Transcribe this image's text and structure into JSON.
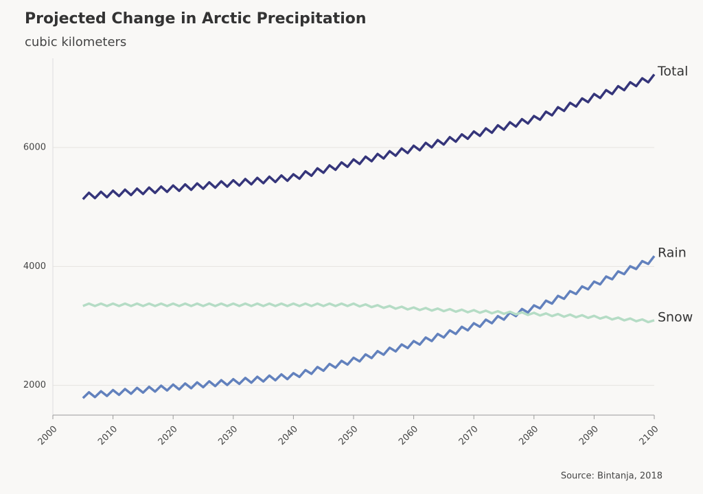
{
  "chart_data": {
    "type": "line",
    "title": "Projected Change in Arctic Precipitation",
    "subtitle": "cubic kilometers",
    "source": "Source: Bintanja, 2018",
    "x": [
      2005,
      2006,
      2007,
      2008,
      2009,
      2010,
      2011,
      2012,
      2013,
      2014,
      2015,
      2016,
      2017,
      2018,
      2019,
      2020,
      2021,
      2022,
      2023,
      2024,
      2025,
      2026,
      2027,
      2028,
      2029,
      2030,
      2031,
      2032,
      2033,
      2034,
      2035,
      2036,
      2037,
      2038,
      2039,
      2040,
      2041,
      2042,
      2043,
      2044,
      2045,
      2046,
      2047,
      2048,
      2049,
      2050,
      2051,
      2052,
      2053,
      2054,
      2055,
      2056,
      2057,
      2058,
      2059,
      2060,
      2061,
      2062,
      2063,
      2064,
      2065,
      2066,
      2067,
      2068,
      2069,
      2070,
      2071,
      2072,
      2073,
      2074,
      2075,
      2076,
      2077,
      2078,
      2079,
      2080,
      2081,
      2082,
      2083,
      2084,
      2085,
      2086,
      2087,
      2088,
      2089,
      2090,
      2091,
      2092,
      2093,
      2094,
      2095,
      2096,
      2097,
      2098,
      2099,
      2100
    ],
    "series": [
      {
        "name": "Total",
        "color": "#35357a",
        "values": [
          5130,
          5239,
          5148,
          5256,
          5165,
          5274,
          5183,
          5292,
          5200,
          5309,
          5218,
          5327,
          5236,
          5344,
          5253,
          5362,
          5271,
          5380,
          5288,
          5397,
          5306,
          5415,
          5324,
          5432,
          5341,
          5450,
          5360,
          5470,
          5380,
          5490,
          5400,
          5510,
          5420,
          5530,
          5440,
          5550,
          5475,
          5600,
          5525,
          5650,
          5575,
          5700,
          5625,
          5750,
          5675,
          5800,
          5723,
          5846,
          5769,
          5892,
          5815,
          5938,
          5861,
          5984,
          5907,
          6030,
          5954,
          6078,
          6002,
          6126,
          6050,
          6174,
          6098,
          6222,
          6146,
          6270,
          6196,
          6322,
          6248,
          6374,
          6300,
          6426,
          6352,
          6478,
          6404,
          6530,
          6467,
          6604,
          6541,
          6678,
          6615,
          6752,
          6689,
          6826,
          6763,
          6900,
          6833,
          6966,
          6899,
          7032,
          6965,
          7098,
          7031,
          7164,
          7097,
          7230
        ]
      },
      {
        "name": "Rain",
        "color": "#6281bd",
        "values": [
          1785,
          1884,
          1803,
          1902,
          1822,
          1921,
          1840,
          1939,
          1859,
          1958,
          1877,
          1976,
          1896,
          1995,
          1914,
          2013,
          1932,
          2032,
          1951,
          2050,
          1969,
          2068,
          1988,
          2087,
          2006,
          2105,
          2025,
          2125,
          2045,
          2145,
          2065,
          2165,
          2085,
          2185,
          2105,
          2205,
          2141,
          2257,
          2193,
          2309,
          2245,
          2361,
          2297,
          2413,
          2349,
          2465,
          2403,
          2521,
          2459,
          2577,
          2515,
          2633,
          2571,
          2689,
          2627,
          2745,
          2685,
          2805,
          2745,
          2865,
          2805,
          2925,
          2865,
          2985,
          2925,
          3045,
          2985,
          3105,
          3045,
          3165,
          3105,
          3225,
          3165,
          3285,
          3225,
          3345,
          3295,
          3425,
          3375,
          3505,
          3455,
          3585,
          3535,
          3665,
          3615,
          3745,
          3698,
          3831,
          3784,
          3917,
          3870,
          4003,
          3956,
          4089,
          4042,
          4175
        ]
      },
      {
        "name": "Snow",
        "color": "#b5dcc5",
        "values": [
          3335,
          3375,
          3335,
          3375,
          3335,
          3375,
          3335,
          3375,
          3335,
          3375,
          3335,
          3375,
          3335,
          3375,
          3335,
          3375,
          3335,
          3375,
          3335,
          3375,
          3335,
          3375,
          3335,
          3375,
          3335,
          3375,
          3335,
          3375,
          3335,
          3375,
          3335,
          3375,
          3335,
          3375,
          3335,
          3375,
          3335,
          3375,
          3335,
          3375,
          3335,
          3375,
          3335,
          3375,
          3335,
          3375,
          3328,
          3362,
          3316,
          3349,
          3303,
          3336,
          3290,
          3323,
          3277,
          3310,
          3266,
          3301,
          3257,
          3292,
          3248,
          3283,
          3239,
          3274,
          3230,
          3265,
          3221,
          3256,
          3212,
          3247,
          3203,
          3238,
          3194,
          3229,
          3185,
          3220,
          3175,
          3210,
          3165,
          3200,
          3155,
          3190,
          3145,
          3180,
          3135,
          3170,
          3123,
          3155,
          3108,
          3140,
          3093,
          3125,
          3078,
          3110,
          3063,
          3095
        ]
      }
    ],
    "xlim": [
      2000,
      2100
    ],
    "xticks": [
      2000,
      2010,
      2020,
      2030,
      2040,
      2050,
      2060,
      2070,
      2080,
      2090,
      2100
    ],
    "ylim": [
      1500,
      7500
    ],
    "yticks": [
      2000,
      4000,
      6000
    ],
    "grid": true
  }
}
